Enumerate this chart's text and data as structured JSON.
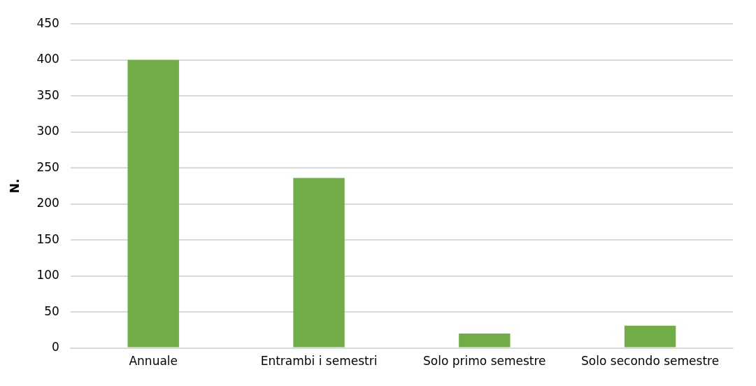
{
  "chart_data": {
    "type": "bar",
    "ylabel": "N.",
    "categories": [
      "Annuale",
      "Entrambi i semestri",
      "Solo primo semestre",
      "Solo secondo semestre"
    ],
    "values": [
      400,
      236,
      20,
      31
    ],
    "color": "#70ad47",
    "ylim": [
      0,
      450
    ],
    "yticks": [
      0,
      50,
      100,
      150,
      200,
      250,
      300,
      350,
      400,
      450
    ],
    "grid": "y",
    "legend": false
  }
}
